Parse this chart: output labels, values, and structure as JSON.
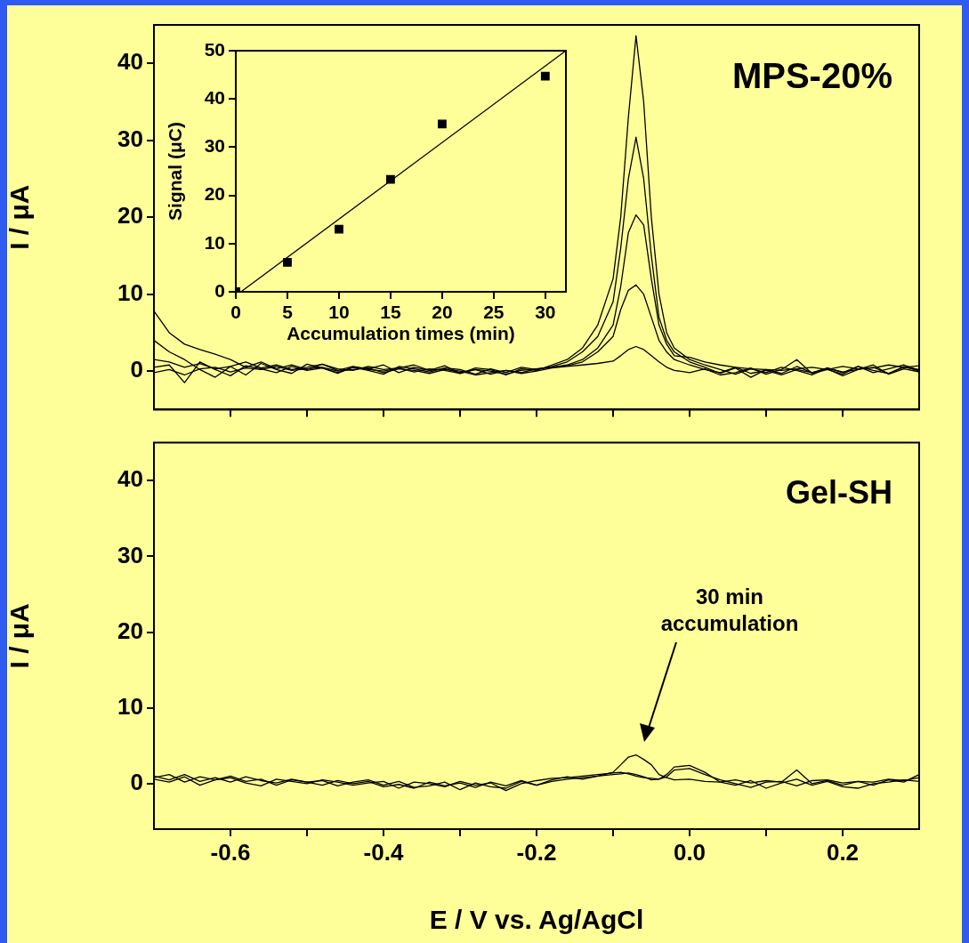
{
  "chart_data": [
    {
      "type": "line",
      "ylabel": "I / μA",
      "annotations": [
        "MPS-20%"
      ],
      "xlim": [
        -0.7,
        0.3
      ],
      "xticks": [
        {
          "value": -0.6,
          "label": null
        },
        {
          "value": -0.5,
          "label": null
        },
        {
          "value": -0.4,
          "label": null
        },
        {
          "value": -0.3,
          "label": null
        },
        {
          "value": -0.2,
          "label": null
        },
        {
          "value": -0.1,
          "label": null
        },
        {
          "value": 0,
          "label": null
        },
        {
          "value": 0.1,
          "label": null
        },
        {
          "value": 0.2,
          "label": null
        }
      ],
      "ylim": [
        -5,
        45
      ],
      "yticks": [
        0,
        10,
        20,
        30,
        40
      ],
      "tick_labels": "y",
      "grid": false,
      "legend": false,
      "marker": "none",
      "x": [
        -0.7,
        -0.68,
        -0.66,
        -0.64,
        -0.62,
        -0.6,
        -0.58,
        -0.56,
        -0.54,
        -0.52,
        -0.5,
        -0.48,
        -0.46,
        -0.44,
        -0.42,
        -0.4,
        -0.38,
        -0.36,
        -0.34,
        -0.32,
        -0.3,
        -0.28,
        -0.26,
        -0.24,
        -0.22,
        -0.2,
        -0.18,
        -0.16,
        -0.14,
        -0.12,
        -0.1,
        -0.09,
        -0.08,
        -0.07,
        -0.06,
        -0.05,
        -0.04,
        -0.03,
        -0.02,
        0,
        0.02,
        0.04,
        0.06,
        0.08,
        0.1,
        0.12,
        0.14,
        0.16,
        0.18,
        0.2,
        0.22,
        0.24,
        0.26,
        0.28,
        0.3
      ],
      "series": [
        {
          "color": "#000000",
          "values": [
            7.8,
            5,
            3.5,
            2.8,
            2.2,
            1.5,
            0.5,
            1.2,
            0.3,
            0.8,
            0.2,
            0.9,
            0.1,
            0.6,
            0.3,
            0.8,
            -0.2,
            0.5,
            0.1,
            0.7,
            -0.3,
            0.4,
            0.2,
            -0.5,
            0.3,
            0.1,
            0.8,
            1.5,
            3,
            6,
            12,
            20,
            33,
            43.6,
            35,
            20,
            10,
            5,
            3,
            1.5,
            0.8,
            0.2,
            -0.4,
            0.3,
            -0.2,
            0.5,
            0.1,
            -0.5,
            0.4,
            -0.2,
            0.6,
            0.1,
            -0.3,
            0.5,
            0.2
          ]
        },
        {
          "color": "#000000",
          "values": [
            4,
            2.5,
            1.5,
            0.2,
            -0.8,
            0.6,
            -0.5,
            1.0,
            0.2,
            -0.3,
            0.9,
            0.4,
            -0.2,
            0.5,
            0.1,
            -0.4,
            0.6,
            0.3,
            -0.1,
            0.4,
            0.2,
            -0.4,
            0.3,
            -0.2,
            0.5,
            0.2,
            0.6,
            1.2,
            2.5,
            4.5,
            9,
            16,
            25,
            30.4,
            25,
            15,
            7,
            4,
            2.5,
            1.2,
            0.5,
            -0.3,
            0.4,
            -0.8,
            0.2,
            -0.3,
            0.6,
            -0.2,
            0.3,
            -0.6,
            0.2,
            0.8,
            -0.4,
            0.3,
            -0.1
          ]
        },
        {
          "color": "#000000",
          "values": [
            1.5,
            1.2,
            0.5,
            1.0,
            0.3,
            0.6,
            1.2,
            0.4,
            0.8,
            0.2,
            0.5,
            0.9,
            0.3,
            0.1,
            0.6,
            0.2,
            0.4,
            0.8,
            0.1,
            0.3,
            -0.2,
            0.2,
            -0.4,
            0.1,
            -0.2,
            0.3,
            0.5,
            0.8,
            1.5,
            3,
            6,
            11,
            18,
            20.3,
            19,
            12,
            6,
            3.5,
            2,
            1.8,
            1.2,
            0.8,
            0.5,
            0.3,
            0.2,
            0.1,
            0.3,
            0.5,
            0.2,
            0.6,
            0.3,
            0.4,
            0.8,
            0.5,
            0.7
          ]
        },
        {
          "color": "#000000",
          "values": [
            0.5,
            0.8,
            -1.5,
            1.2,
            0.2,
            -0.6,
            0.7,
            0.3,
            -0.2,
            0.6,
            0.1,
            0.4,
            -0.3,
            0.5,
            0.2,
            0,
            0.4,
            -0.1,
            0.3,
            0.1,
            -0.3,
            0.2,
            0,
            -0.4,
            0.1,
            0.3,
            0.5,
            0.7,
            1.2,
            2.5,
            4.5,
            8,
            10.5,
            11.2,
            10,
            7,
            4,
            2.5,
            1.5,
            0.8,
            0.2,
            -0.2,
            0.5,
            -0.3,
            0.1,
            -0.5,
            0.2,
            -0.2,
            0.4,
            -0.1,
            0.2,
            0.5,
            -0.3,
            0.6,
            0
          ]
        },
        {
          "color": "#000000",
          "values": [
            -0.2,
            0.2,
            -0.5,
            0.3,
            0.5,
            -0.1,
            0.4,
            0.2,
            0.6,
            0.1,
            0.3,
            0.5,
            0,
            0.2,
            0.4,
            -0.2,
            0.3,
            0.1,
            -0.3,
            0.2,
            0,
            -0.5,
            -0.2,
            0.1,
            -0.3,
            0,
            0.4,
            0.6,
            0.8,
            1,
            1.3,
            2,
            2.8,
            3.2,
            2.8,
            2,
            1.2,
            0.5,
            0.1,
            -0.2,
            0.3,
            -0.5,
            -0.2,
            0.4,
            -0.4,
            0.2,
            1.5,
            -0.3,
            0.2,
            -0.4,
            0.6,
            -0.2,
            0.3,
            0.8,
            0.1
          ]
        }
      ]
    },
    {
      "type": "scatter",
      "xlabel": "Accumulation times (min)",
      "ylabel": "Signal (μC)",
      "xlim": [
        0,
        32
      ],
      "xticks": [
        0,
        5,
        10,
        15,
        20,
        25,
        30
      ],
      "ylim": [
        0,
        50
      ],
      "yticks": [
        0,
        10,
        20,
        30,
        40,
        50
      ],
      "grid": false,
      "legend": false,
      "series": [
        {
          "type": "scatter",
          "marker": "square",
          "color": "#000000",
          "x": [
            0,
            5,
            10,
            15,
            20,
            30
          ],
          "values": [
            0,
            6.1,
            13,
            23.3,
            34.8,
            44.7
          ]
        },
        {
          "type": "line",
          "color": "#000000",
          "x": [
            0.5,
            32
          ],
          "values": [
            0,
            50
          ]
        }
      ]
    },
    {
      "type": "line",
      "xlabel": "E / V vs. Ag/AgCl",
      "ylabel": "I / μA",
      "annotations": [
        "Gel-SH",
        "30 min\naccumulation"
      ],
      "xlim": [
        -0.7,
        0.3
      ],
      "xticks": [
        -0.6,
        {
          "value": -0.5,
          "label": null
        },
        -0.4,
        {
          "value": -0.3,
          "label": null
        },
        -0.2,
        {
          "value": -0.1,
          "label": null
        },
        {
          "value": 0,
          "label": "0.0"
        },
        {
          "value": 0.1,
          "label": null
        },
        0.2
      ],
      "ylim": [
        -6,
        45
      ],
      "yticks": [
        0,
        10,
        20,
        30,
        40
      ],
      "grid": false,
      "legend": false,
      "marker": "none",
      "x": [
        -0.7,
        -0.68,
        -0.66,
        -0.64,
        -0.62,
        -0.6,
        -0.58,
        -0.56,
        -0.54,
        -0.52,
        -0.5,
        -0.48,
        -0.46,
        -0.44,
        -0.42,
        -0.4,
        -0.38,
        -0.36,
        -0.34,
        -0.32,
        -0.3,
        -0.28,
        -0.26,
        -0.24,
        -0.22,
        -0.2,
        -0.18,
        -0.16,
        -0.14,
        -0.12,
        -0.1,
        -0.09,
        -0.08,
        -0.07,
        -0.06,
        -0.05,
        -0.04,
        -0.03,
        -0.02,
        0,
        0.02,
        0.04,
        0.06,
        0.08,
        0.1,
        0.12,
        0.14,
        0.16,
        0.18,
        0.2,
        0.22,
        0.24,
        0.26,
        0.28,
        0.3
      ],
      "series": [
        {
          "color": "#000000",
          "values": [
            1,
            0.5,
            1.2,
            0.3,
            0.8,
            0.2,
            0.9,
            0.4,
            0.1,
            0.6,
            0.2,
            -0.2,
            0.4,
            0,
            0.3,
            -0.4,
            -0.1,
            -0.6,
            0.2,
            -0.3,
            0.1,
            -0.5,
            0.2,
            -0.3,
            0.4,
            -0.2,
            0.3,
            0.6,
            0.8,
            1,
            1.5,
            2.5,
            3.5,
            3.8,
            3.2,
            2.5,
            1.2,
            0.8,
            0.5,
            0.6,
            0.3,
            0.2,
            0.5,
            0.1,
            0.4,
            0.2,
            1.8,
            0,
            0.4,
            -0.2,
            0.3,
            0.2,
            0.6,
            0.4,
            0.8
          ]
        },
        {
          "color": "#000000",
          "values": [
            0.8,
            1.2,
            0.2,
            0.9,
            0.5,
            1,
            0.3,
            0.6,
            -0.2,
            0.5,
            0.2,
            0.4,
            -0.3,
            0.2,
            0.5,
            -0.2,
            0.3,
            -0.5,
            -0.3,
            0.2,
            -0.8,
            0.1,
            -0.4,
            -0.6,
            0.3,
            -0.2,
            0.5,
            0.9,
            0.6,
            1,
            1.2,
            1.3,
            1.4,
            1.2,
            0.9,
            0.5,
            0.6,
            1.2,
            2.2,
            2.4,
            1.5,
            0.2,
            -0.2,
            0.4,
            -0.6,
            0.1,
            0.6,
            -0.2,
            0.3,
            -0.4,
            -0.6,
            0,
            0.2,
            0.5,
            0.3
          ]
        },
        {
          "color": "#000000",
          "values": [
            0.6,
            0.2,
            0.9,
            -0.2,
            0.5,
            0.8,
            0.1,
            -0.3,
            0.6,
            0.3,
            0,
            0.5,
            0.2,
            -0.2,
            0.1,
            0.3,
            -0.6,
            0.2,
            0,
            -0.4,
            0.3,
            -0.2,
            0.1,
            -0.9,
            0,
            0.4,
            0.7,
            0.8,
            1,
            1.2,
            1.4,
            1.5,
            1.3,
            1,
            0.8,
            0.7,
            0.6,
            0.9,
            1.8,
            2,
            1.2,
            0.5,
            0,
            -0.5,
            0.2,
            0.3,
            -0.3,
            0.4,
            0.5,
            0.1,
            0.3,
            -0.2,
            0.5,
            0.2,
            1.2
          ]
        }
      ]
    }
  ]
}
